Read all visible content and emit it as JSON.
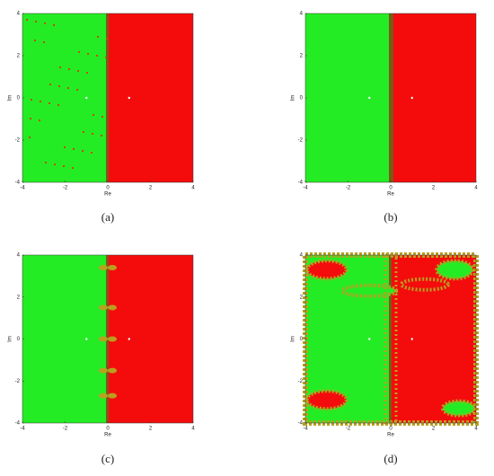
{
  "chart_data": [
    {
      "type": "basin",
      "caption": "(a)",
      "xlabel": "Re",
      "ylabel": "Im",
      "xlim": [
        -4,
        4
      ],
      "ylim": [
        -4,
        4
      ],
      "xticks": [
        -4,
        -2,
        0,
        2,
        4
      ],
      "yticks": [
        -4,
        -2,
        0,
        2,
        4
      ],
      "colors": [
        "#24ec24",
        "#f40c0c"
      ]
    },
    {
      "type": "basin",
      "caption": "(b)",
      "xlabel": "Re",
      "ylabel": "Im",
      "xlim": [
        -4,
        4
      ],
      "ylim": [
        -4,
        4
      ],
      "xticks": [
        -4,
        -2,
        0,
        2,
        4
      ],
      "yticks": [
        -4,
        -2,
        0,
        2,
        4
      ],
      "colors": [
        "#24ec24",
        "#f40c0c"
      ]
    },
    {
      "type": "basin",
      "caption": "(c)",
      "xlabel": "Re",
      "ylabel": "Im",
      "xlim": [
        -4,
        4
      ],
      "ylim": [
        -4,
        4
      ],
      "xticks": [
        -4,
        -2,
        0,
        2,
        4
      ],
      "yticks": [
        -4,
        -2,
        0,
        2,
        4
      ],
      "colors": [
        "#24ec24",
        "#f40c0c"
      ]
    },
    {
      "type": "basin",
      "caption": "(d)",
      "xlabel": "Re",
      "ylabel": "Im",
      "xlim": [
        -4,
        4
      ],
      "ylim": [
        -4,
        4
      ],
      "xticks": [
        -4,
        -2,
        0,
        2,
        4
      ],
      "yticks": [
        -4,
        -2,
        0,
        2,
        4
      ],
      "colors": [
        "#24ec24",
        "#f40c0c"
      ]
    }
  ]
}
